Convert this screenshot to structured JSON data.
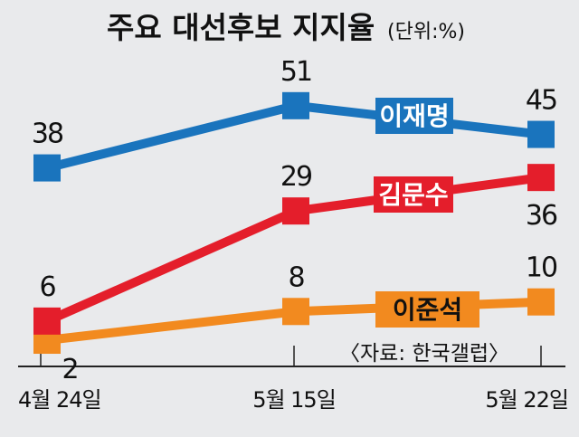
{
  "chart_data": {
    "type": "line",
    "title": "주요 대선후보 지지율",
    "unit": "(단위:%)",
    "categories": [
      "4월 24일",
      "5월 15일",
      "5월 22일"
    ],
    "series": [
      {
        "name": "이재명",
        "values": [
          38,
          51,
          45
        ],
        "color": "#1a74bd",
        "text_color": "#ffffff"
      },
      {
        "name": "김문수",
        "values": [
          6,
          29,
          36
        ],
        "color": "#e41e2b",
        "text_color": "#ffffff"
      },
      {
        "name": "이준석",
        "values": [
          2,
          8,
          10
        ],
        "color": "#f28a1f",
        "text_color": "#111111"
      }
    ],
    "source": "〈자료: 한국갤럽〉",
    "ylim": [
      0,
      55
    ],
    "grid": false,
    "legend": "inline labels on lines"
  }
}
